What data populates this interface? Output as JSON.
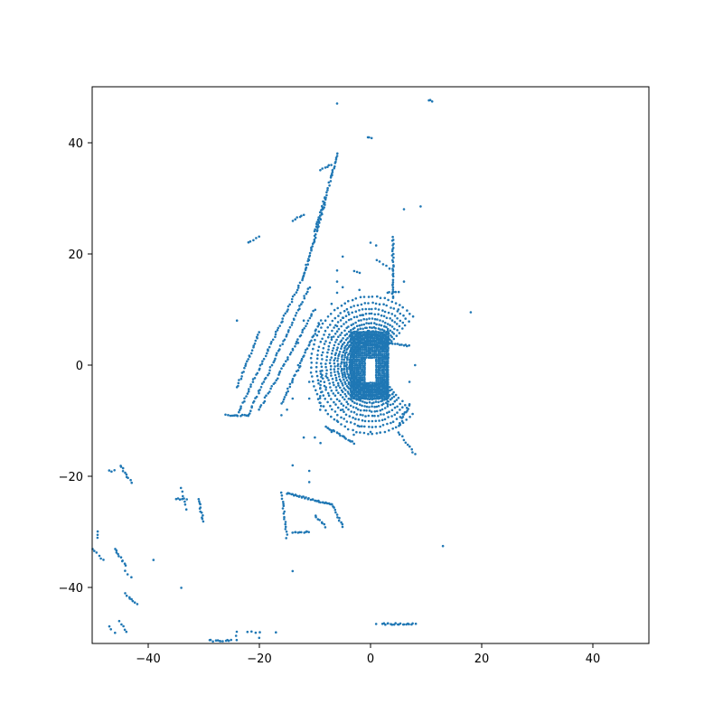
{
  "chart_data": {
    "type": "scatter",
    "title": "",
    "xlabel": "",
    "ylabel": "",
    "xlim": [
      -50,
      50
    ],
    "ylim": [
      -50,
      50
    ],
    "grid": false,
    "legend": "none",
    "marker_color": "#1f77b4",
    "x_ticks": [
      -40,
      -20,
      0,
      20,
      40
    ],
    "y_ticks": [
      -40,
      -20,
      0,
      20,
      40
    ],
    "x_tick_labels": [
      "−40",
      "−20",
      "0",
      "20",
      "40"
    ],
    "y_tick_labels": [
      "−40",
      "−20",
      "0",
      "20",
      "40"
    ],
    "series": [
      {
        "rings": {
          "center": [
            0,
            0
          ],
          "radii": [
            3.3,
            3.8,
            4.3,
            4.8,
            5.3,
            5.9,
            6.5,
            7.2,
            8.0,
            8.8,
            9.7,
            10.7
          ],
          "y_scale": 1.15,
          "arc_from_deg": 45,
          "arc_to_deg": 315,
          "points_per_ring": 70
        },
        "filled_region": {
          "x_range": [
            -3.5,
            3.5
          ],
          "y_range": [
            -6,
            6
          ],
          "hole_x_range": [
            -0.8,
            0.8
          ],
          "hole_y_range": [
            -3,
            1
          ]
        },
        "streaks": [
          {
            "from": [
              -12,
              16
            ],
            "to": [
              -24,
              -9
            ],
            "n": 60
          },
          {
            "from": [
              -11,
              14
            ],
            "to": [
              -22,
              -9
            ],
            "n": 55
          },
          {
            "from": [
              -9,
              8
            ],
            "to": [
              -16,
              -7
            ],
            "n": 40
          },
          {
            "from": [
              -10,
              10
            ],
            "to": [
              -20,
              -8
            ],
            "n": 45
          },
          {
            "from": [
              -8,
              30
            ],
            "to": [
              -12,
              16
            ],
            "n": 45
          },
          {
            "from": [
              -7,
              34
            ],
            "to": [
              -10,
              24
            ],
            "n": 25
          },
          {
            "from": [
              -6,
              38
            ],
            "to": [
              -7,
              34
            ],
            "n": 12
          },
          {
            "from": [
              -20,
              6
            ],
            "to": [
              -24,
              -4
            ],
            "n": 25
          },
          {
            "from": [
              -26,
              -9
            ],
            "to": [
              -22,
              -9
            ],
            "n": 12
          },
          {
            "from": [
              -9,
              35
            ],
            "to": [
              -7,
              36
            ],
            "n": 6
          },
          {
            "from": [
              -12,
              27
            ],
            "to": [
              -14,
              26
            ],
            "n": 6
          },
          {
            "from": [
              -20,
              23
            ],
            "to": [
              -22,
              22
            ],
            "n": 5
          },
          {
            "from": [
              4,
              23
            ],
            "to": [
              4,
              12
            ],
            "n": 30
          },
          {
            "from": [
              3,
              6
            ],
            "to": [
              3,
              -7
            ],
            "n": 30
          },
          {
            "from": [
              5,
              13
            ],
            "to": [
              3,
              13
            ],
            "n": 6
          },
          {
            "from": [
              1,
              19
            ],
            "to": [
              4,
              17
            ],
            "n": 6
          },
          {
            "from": [
              7,
              -7
            ],
            "to": [
              5,
              -11
            ],
            "n": 12
          },
          {
            "from": [
              5,
              -12
            ],
            "to": [
              8,
              -16
            ],
            "n": 10
          },
          {
            "from": [
              -8,
              -11
            ],
            "to": [
              -3,
              -14
            ],
            "n": 20
          },
          {
            "from": [
              3,
              4
            ],
            "to": [
              7,
              3.5
            ],
            "n": 12
          },
          {
            "from": [
              -9,
              -1
            ],
            "to": [
              -9,
              -8
            ],
            "n": 12
          },
          {
            "from": [
              -15,
              -23
            ],
            "to": [
              -7,
              -25
            ],
            "n": 35
          },
          {
            "from": [
              -7,
              -25
            ],
            "to": [
              -5,
              -29
            ],
            "n": 12
          },
          {
            "from": [
              -16,
              -23
            ],
            "to": [
              -15,
              -31
            ],
            "n": 18
          },
          {
            "from": [
              -14,
              -30
            ],
            "to": [
              -11,
              -30
            ],
            "n": 10
          },
          {
            "from": [
              -10,
              -27
            ],
            "to": [
              -8,
              -29
            ],
            "n": 8
          },
          {
            "from": [
              -35,
              -24
            ],
            "to": [
              -33,
              -24
            ],
            "n": 6
          },
          {
            "from": [
              -31,
              -24
            ],
            "to": [
              -30,
              -28
            ],
            "n": 12
          },
          {
            "from": [
              -34,
              -22
            ],
            "to": [
              -33,
              -26
            ],
            "n": 6
          },
          {
            "from": [
              -45,
              -18
            ],
            "to": [
              -43,
              -21
            ],
            "n": 10
          },
          {
            "from": [
              -47,
              -19
            ],
            "to": [
              -46,
              -19
            ],
            "n": 3
          },
          {
            "from": [
              -46,
              -33
            ],
            "to": [
              -44,
              -36
            ],
            "n": 10
          },
          {
            "from": [
              -49,
              -30
            ],
            "to": [
              -49,
              -31
            ],
            "n": 3
          },
          {
            "from": [
              -50,
              -33
            ],
            "to": [
              -48,
              -35
            ],
            "n": 6
          },
          {
            "from": [
              -44,
              -37
            ],
            "to": [
              -43,
              -38
            ],
            "n": 3
          },
          {
            "from": [
              -44,
              -41
            ],
            "to": [
              -42,
              -43
            ],
            "n": 8
          },
          {
            "from": [
              -45,
              -46
            ],
            "to": [
              -44,
              -48
            ],
            "n": 5
          },
          {
            "from": [
              -47,
              -47
            ],
            "to": [
              -46,
              -48
            ],
            "n": 3
          },
          {
            "from": [
              -29,
              -49.5
            ],
            "to": [
              -25,
              -49.5
            ],
            "n": 12
          },
          {
            "from": [
              -22,
              -48
            ],
            "to": [
              -20,
              -48
            ],
            "n": 4
          },
          {
            "from": [
              -24,
              -48
            ],
            "to": [
              -24,
              -49.5
            ],
            "n": 3
          },
          {
            "from": [
              2,
              -46.5
            ],
            "to": [
              8,
              -46.5
            ],
            "n": 20
          },
          {
            "from": [
              10.5,
              47.5
            ],
            "to": [
              11,
              47.5
            ],
            "n": 3
          },
          {
            "from": [
              -0.5,
              41
            ],
            "to": [
              0.2,
              40.8
            ],
            "n": 3
          },
          {
            "from": [
              -3,
              17
            ],
            "to": [
              -2,
              16.5
            ],
            "n": 3
          }
        ],
        "scatter_points": [
          [
            -6,
            47
          ],
          [
            -2,
            13.5
          ],
          [
            -1.5,
            9
          ],
          [
            -4,
            9.5
          ],
          [
            -5,
            8.5
          ],
          [
            -6,
            7
          ],
          [
            -7,
            5
          ],
          [
            -8,
            -2
          ],
          [
            -8,
            -4
          ],
          [
            -5,
            -8
          ],
          [
            -6,
            -10
          ],
          [
            -7,
            -12
          ],
          [
            -10,
            -13
          ],
          [
            -9,
            -14
          ],
          [
            -11,
            -19
          ],
          [
            -11,
            -21
          ],
          [
            -5,
            14
          ],
          [
            -6,
            13
          ],
          [
            -7,
            11
          ],
          [
            -6,
            15
          ],
          [
            -12,
            8
          ],
          [
            -13,
            4
          ],
          [
            -13,
            0
          ],
          [
            -11,
            -3
          ],
          [
            -11,
            -6
          ],
          [
            -24,
            8
          ],
          [
            -14,
            -37
          ],
          [
            -39,
            -35
          ],
          [
            -34,
            -40
          ],
          [
            -20,
            -49
          ],
          [
            -17,
            -48
          ],
          [
            1,
            -46.5
          ],
          [
            13,
            -32.5
          ],
          [
            18,
            9.5
          ],
          [
            9,
            28.5
          ],
          [
            6,
            28
          ],
          [
            1,
            21.5
          ],
          [
            0,
            22
          ],
          [
            -5,
            19.5
          ],
          [
            -6,
            17
          ],
          [
            -16,
            -9
          ],
          [
            -15,
            -8
          ],
          [
            -14,
            -6
          ],
          [
            6,
            15
          ],
          [
            5,
            10
          ],
          [
            2.5,
            7
          ],
          [
            8,
            0
          ],
          [
            7,
            -3
          ],
          [
            -2,
            -11
          ],
          [
            0,
            -12
          ],
          [
            -3,
            -12.5
          ],
          [
            -12,
            -13
          ],
          [
            -14,
            -18
          ]
        ]
      }
    ]
  }
}
